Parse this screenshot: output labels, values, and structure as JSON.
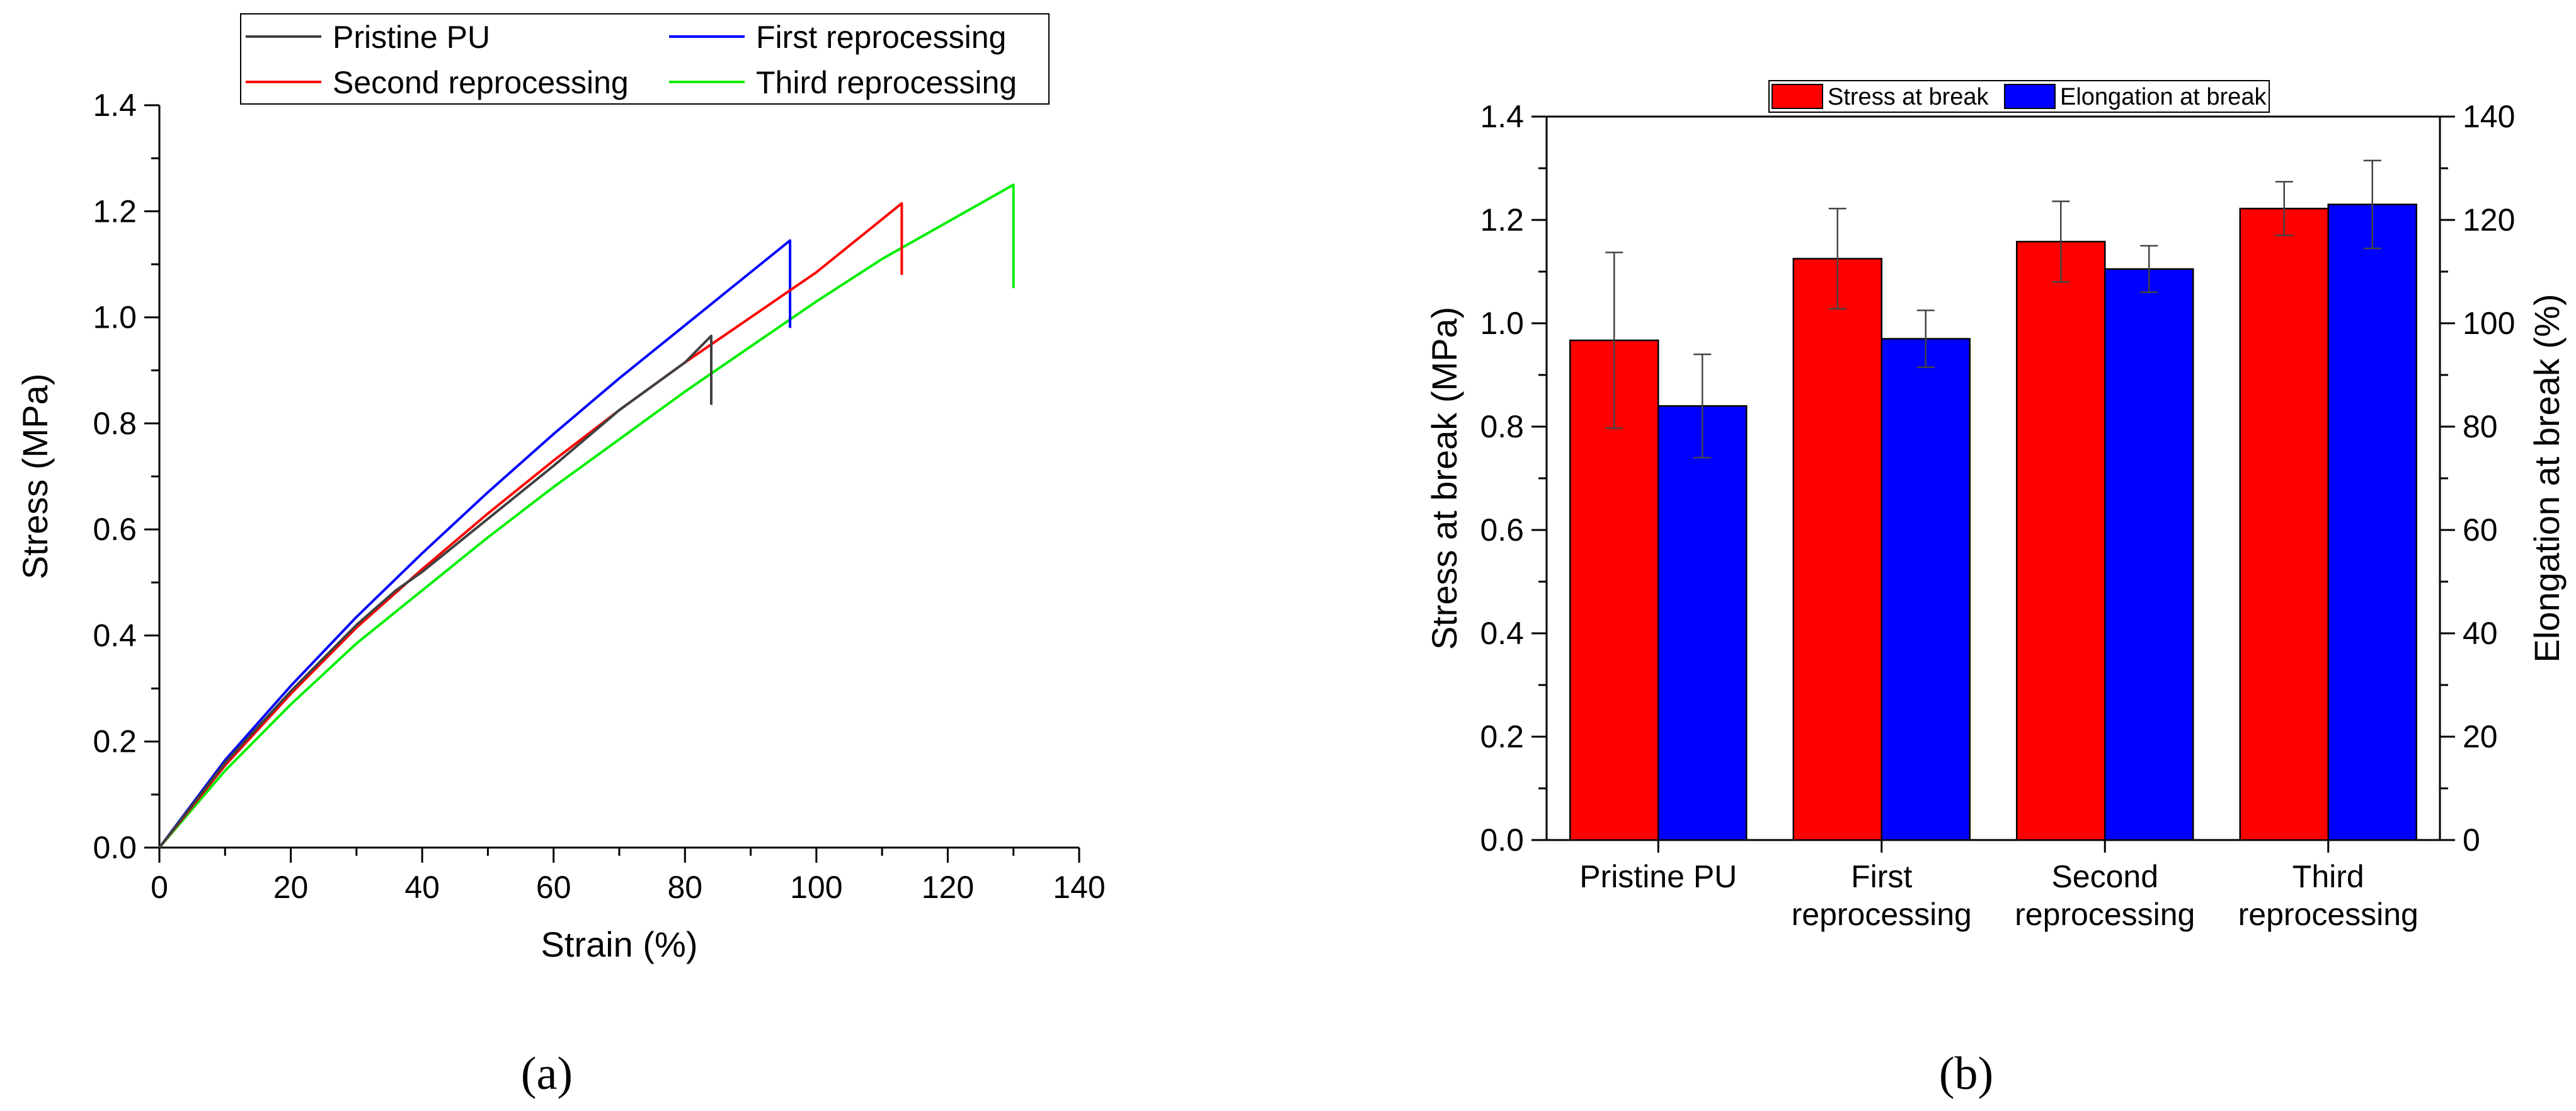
{
  "chart_data": [
    {
      "id": "a",
      "type": "line",
      "panel_label": "a",
      "xlabel": "Strain (%)",
      "ylabel": "Stress (MPa)",
      "xlim": [
        0,
        140
      ],
      "ylim": [
        0,
        1.4
      ],
      "xticks": [
        "0",
        "20",
        "40",
        "60",
        "80",
        "100",
        "120",
        "140"
      ],
      "yticks": [
        "0.0",
        "0.2",
        "0.4",
        "0.6",
        "0.8",
        "1.0",
        "1.2",
        "1.4"
      ],
      "legend": "top",
      "series": [
        {
          "name": "Pristine PU",
          "color": "#404040",
          "x": [
            0,
            10,
            20,
            30,
            36,
            40,
            50,
            60,
            70,
            80,
            84,
            84,
            84
          ],
          "y": [
            0,
            0.16,
            0.295,
            0.42,
            0.485,
            0.52,
            0.62,
            0.72,
            0.825,
            0.915,
            0.965,
            0.9,
            0.835
          ]
        },
        {
          "name": "First reprocessing",
          "color": "#0000ff",
          "x": [
            0,
            10,
            20,
            30,
            40,
            50,
            60,
            70,
            80,
            90,
            96,
            96
          ],
          "y": [
            0,
            0.165,
            0.305,
            0.435,
            0.555,
            0.67,
            0.78,
            0.885,
            0.985,
            1.085,
            1.145,
            0.98
          ]
        },
        {
          "name": "Second reprocessing",
          "color": "#ff0000",
          "x": [
            0,
            10,
            20,
            30,
            40,
            50,
            60,
            70,
            80,
            90,
            100,
            113,
            113
          ],
          "y": [
            0,
            0.155,
            0.29,
            0.415,
            0.525,
            0.63,
            0.73,
            0.825,
            0.915,
            1.0,
            1.085,
            1.215,
            1.08
          ]
        },
        {
          "name": "Third reprocessing",
          "color": "#00ee00",
          "x": [
            0,
            10,
            20,
            30,
            40,
            50,
            60,
            70,
            80,
            90,
            100,
            110,
            120,
            130,
            130
          ],
          "y": [
            0,
            0.145,
            0.27,
            0.385,
            0.485,
            0.585,
            0.68,
            0.77,
            0.86,
            0.945,
            1.03,
            1.11,
            1.18,
            1.25,
            1.055
          ]
        }
      ]
    },
    {
      "id": "b",
      "type": "bar",
      "panel_label": "b",
      "categories": [
        [
          "Pristine PU"
        ],
        [
          "First",
          "reprocessing"
        ],
        [
          "Second",
          "reprocessing"
        ],
        [
          "Third",
          "reprocessing"
        ]
      ],
      "ylabel": "Stress at break (MPa)",
      "y2label": "Elongation at break (%)",
      "ylim": [
        0,
        1.4
      ],
      "y2lim": [
        0,
        140
      ],
      "yticks": [
        "0.0",
        "0.2",
        "0.4",
        "0.6",
        "0.8",
        "1.0",
        "1.2",
        "1.4"
      ],
      "y2ticks": [
        "0",
        "20",
        "40",
        "60",
        "80",
        "100",
        "120",
        "140"
      ],
      "legend": "top-center",
      "series": [
        {
          "name": "Stress at break",
          "color": "#ff0000",
          "axis": "left",
          "values": [
            0.967,
            1.125,
            1.158,
            1.222
          ],
          "errors": [
            0.17,
            0.097,
            0.078,
            0.052
          ]
        },
        {
          "name": "Elongation at break",
          "color": "#0000ff",
          "axis": "right",
          "values": [
            84.0,
            97.0,
            110.5,
            123.0
          ],
          "errors": [
            10,
            5.5,
            4.5,
            8.5
          ]
        }
      ]
    }
  ]
}
